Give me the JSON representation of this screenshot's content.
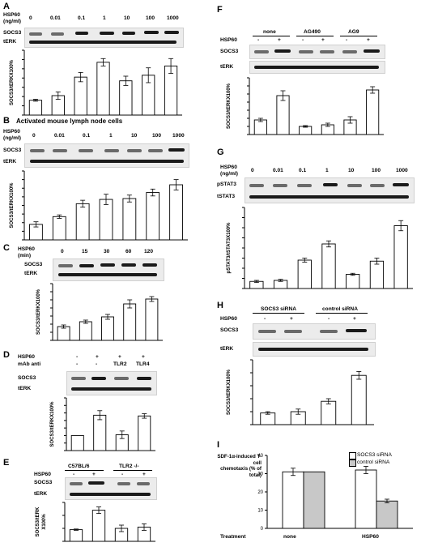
{
  "panels": {
    "A": {
      "letter": "A",
      "row_label_1": "HSP60",
      "row_label_2": "(ng/ml)",
      "conditions": [
        "0",
        "0.01",
        "0.1",
        "1",
        "10",
        "100",
        "1000"
      ],
      "blot_labels": [
        "SOCS3",
        "tERK"
      ],
      "ylabel": "SOCS3/tERKX100%"
    },
    "B": {
      "letter": "B",
      "title": "Activated mouse lymph node cells",
      "row_label_1": "HSP60",
      "row_label_2": "(ng/ml)",
      "conditions": [
        "0",
        "0.01",
        "0.1",
        "1",
        "10",
        "100",
        "1000"
      ],
      "blot_labels": [
        "SOCS3",
        "tERK"
      ],
      "ylabel": "SOCS3/tERKX100%"
    },
    "C": {
      "letter": "C",
      "row_label_1": "HSP60",
      "row_label_2": "(min)",
      "conditions": [
        "0",
        "15",
        "30",
        "60",
        "120"
      ],
      "blot_labels": [
        "SOCS3",
        "tERK"
      ],
      "ylabel": "SOCS3/tERKX100%"
    },
    "D": {
      "letter": "D",
      "row_label_1": "HSP60",
      "row_label_2": "mAb anti",
      "conditions_row1": [
        "-",
        "+",
        "+",
        "+"
      ],
      "conditions_row2": [
        "-",
        "-",
        "TLR2",
        "TLR4"
      ],
      "blot_labels": [
        "SOCS3",
        "tERK"
      ],
      "ylabel": "SOCS3/tERKX100%"
    },
    "E": {
      "letter": "E",
      "groups": [
        "C57BL/6",
        "TLR2 -/-"
      ],
      "row_label_1": "HSP60",
      "conditions": [
        "-",
        "+",
        "-",
        "+"
      ],
      "blot_labels": [
        "SOCS3",
        "tERK"
      ],
      "ylabel_1": "SOCS3/tERK",
      "ylabel_2": "X100%"
    },
    "F": {
      "letter": "F",
      "groups": [
        "none",
        "AG490",
        "AG9"
      ],
      "row_label_1": "HSP60",
      "conditions": [
        "-",
        "+",
        "-",
        "+",
        "-",
        "+"
      ],
      "blot_labels": [
        "SOCS3",
        "tERK"
      ],
      "ylabel": "SOCS3/tERKX100%"
    },
    "G": {
      "letter": "G",
      "row_label_1": "HSP60",
      "row_label_2": "(ng/ml)",
      "conditions": [
        "0",
        "0.01",
        "0.1",
        "1",
        "10",
        "100",
        "1000"
      ],
      "blot_labels": [
        "pSTAT3",
        "tSTAT3"
      ],
      "ylabel": "pSTAT3/tSTAT3X100%"
    },
    "H": {
      "letter": "H",
      "groups": [
        "SOCS3 siRNA",
        "control siRNA"
      ],
      "row_label_1": "HSP60",
      "conditions": [
        "-",
        "+",
        "-",
        "+"
      ],
      "blot_labels": [
        "SOCS3",
        "tERK"
      ],
      "ylabel": "SOCS3/tERKX100%"
    },
    "I": {
      "letter": "I",
      "ylabel_lines": [
        "SDF-1α-induced T- cell",
        "chemotaxis (% of total)"
      ],
      "legend": [
        "SOCS3 siRNA",
        "control siRNA"
      ],
      "treatment_label": "Treatment",
      "treatments": [
        "none",
        "HSP60"
      ]
    }
  },
  "chart_data": [
    {
      "panel": "A",
      "type": "bar",
      "categories": [
        "0",
        "0.01",
        "0.1",
        "1",
        "10",
        "100",
        "1000"
      ],
      "values": [
        16,
        21,
        41,
        57,
        37,
        43,
        53
      ],
      "errors": [
        1,
        4,
        5,
        4,
        5,
        8,
        8
      ],
      "ylabel": "SOCS3/tERKX100%",
      "ylim": [
        0,
        70
      ],
      "yticks": [
        0,
        10,
        20,
        30,
        40,
        50,
        60,
        70
      ]
    },
    {
      "panel": "B",
      "type": "bar",
      "categories": [
        "0",
        "0.01",
        "0.1",
        "1",
        "10",
        "100",
        "1000"
      ],
      "values": [
        18,
        27,
        42,
        47,
        48,
        55,
        64
      ],
      "errors": [
        3,
        2,
        4,
        6,
        4,
        4,
        6
      ],
      "ylabel": "SOCS3/tERKX100%",
      "ylim": [
        0,
        80
      ],
      "yticks": [
        0,
        10,
        20,
        30,
        40,
        50,
        60,
        70,
        80
      ]
    },
    {
      "panel": "C",
      "type": "bar",
      "categories": [
        "0",
        "15",
        "30",
        "60",
        "120"
      ],
      "values": [
        17,
        23,
        29,
        45,
        51
      ],
      "errors": [
        2,
        2,
        3,
        5,
        3
      ],
      "ylabel": "SOCS3/tERKX100%",
      "ylim": [
        0,
        70
      ],
      "yticks": [
        0,
        10,
        20,
        30,
        40,
        50,
        60,
        70
      ]
    },
    {
      "panel": "D",
      "type": "bar",
      "categories": [
        "-/-",
        "+/-",
        "+/TLR2",
        "+/TLR4"
      ],
      "values": [
        20,
        47,
        21,
        46
      ],
      "errors": [
        0,
        6,
        5,
        3
      ],
      "ylabel": "SOCS3/tERKX100%",
      "ylim": [
        0,
        70
      ],
      "yticks": [
        0,
        10,
        20,
        30,
        40,
        50,
        60,
        70
      ]
    },
    {
      "panel": "E",
      "type": "bar",
      "categories": [
        "C57BL/6 -",
        "C57BL/6 +",
        "TLR2-/- -",
        "TLR2-/- +"
      ],
      "values": [
        18,
        48,
        20,
        22
      ],
      "errors": [
        1,
        5,
        5,
        5
      ],
      "ylabel": "SOCS3/tERK X100%",
      "ylim": [
        0,
        60
      ],
      "yticks": [
        0,
        20,
        40,
        60
      ]
    },
    {
      "panel": "F",
      "type": "bar",
      "categories": [
        "none -",
        "none +",
        "AG490 -",
        "AG490 +",
        "AG9 -",
        "AG9 +"
      ],
      "values": [
        18,
        48,
        10,
        12,
        18,
        55
      ],
      "errors": [
        2,
        6,
        1,
        2,
        4,
        4
      ],
      "ylabel": "SOCS3/tERKX100%",
      "ylim": [
        0,
        70
      ],
      "yticks": [
        0,
        10,
        20,
        30,
        40,
        50,
        60,
        70
      ]
    },
    {
      "panel": "G",
      "type": "bar",
      "categories": [
        "0",
        "0.01",
        "0.1",
        "1",
        "10",
        "100",
        "1000"
      ],
      "values": [
        7,
        8,
        28,
        44,
        14,
        27,
        62
      ],
      "errors": [
        1,
        1,
        2,
        3,
        1,
        3,
        5
      ],
      "ylabel": "pSTAT3/tSTAT3X100%",
      "ylim": [
        0,
        80
      ],
      "yticks": [
        0,
        10,
        20,
        30,
        40,
        50,
        60,
        70,
        80
      ]
    },
    {
      "panel": "H",
      "type": "bar",
      "categories": [
        "SOCS3 siRNA -",
        "SOCS3 siRNA +",
        "control siRNA -",
        "control siRNA +"
      ],
      "values": [
        9,
        10,
        18,
        38
      ],
      "errors": [
        1,
        2,
        2,
        3
      ],
      "ylabel": "SOCS3/tERKX100%",
      "ylim": [
        0,
        50
      ],
      "yticks": [
        0,
        10,
        20,
        30,
        40,
        50
      ]
    },
    {
      "panel": "I",
      "type": "bar",
      "categories": [
        "none",
        "HSP60"
      ],
      "series": [
        {
          "name": "SOCS3 siRNA",
          "values": [
            31,
            32
          ],
          "errors": [
            2,
            2
          ]
        },
        {
          "name": "control siRNA",
          "values": [
            31,
            15
          ],
          "errors": [
            0,
            1
          ]
        }
      ],
      "ylabel": "SDF-1α-induced T- cell chemotaxis (% of total)",
      "xlabel": "Treatment",
      "ylim": [
        0,
        40
      ],
      "yticks": [
        0,
        10,
        20,
        30,
        40
      ]
    }
  ],
  "colors": {
    "bar_fill": "#ffffff",
    "bar_fill_alt": "#c8c8c8",
    "stroke": "#000000",
    "band_dark": "#1a1a1a"
  }
}
